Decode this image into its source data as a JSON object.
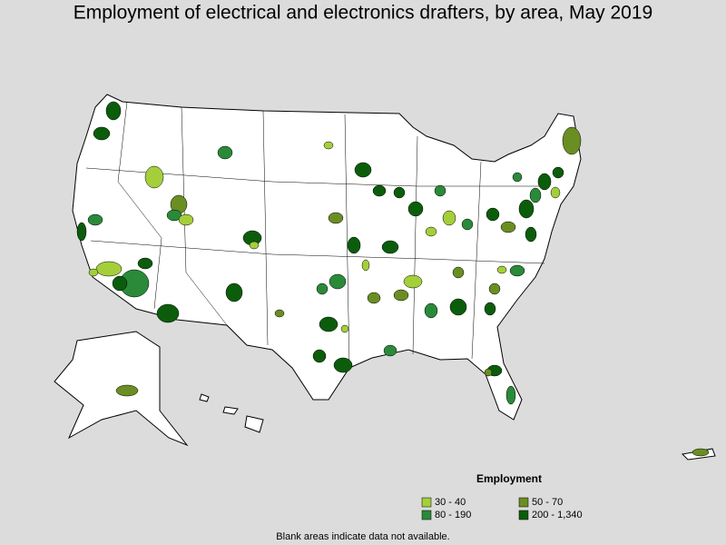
{
  "title": "Employment of electrical and electronics drafters, by area, May 2019",
  "legend": {
    "title": "Employment",
    "items": [
      {
        "label": "30 - 40",
        "color": "#a4cf3a"
      },
      {
        "label": "50 - 70",
        "color": "#6b8e23"
      },
      {
        "label": "80 - 190",
        "color": "#2a8a3a"
      },
      {
        "label": "200 - 1,340",
        "color": "#0b5d0b"
      }
    ]
  },
  "footnote": "Blank areas indicate data not available."
}
